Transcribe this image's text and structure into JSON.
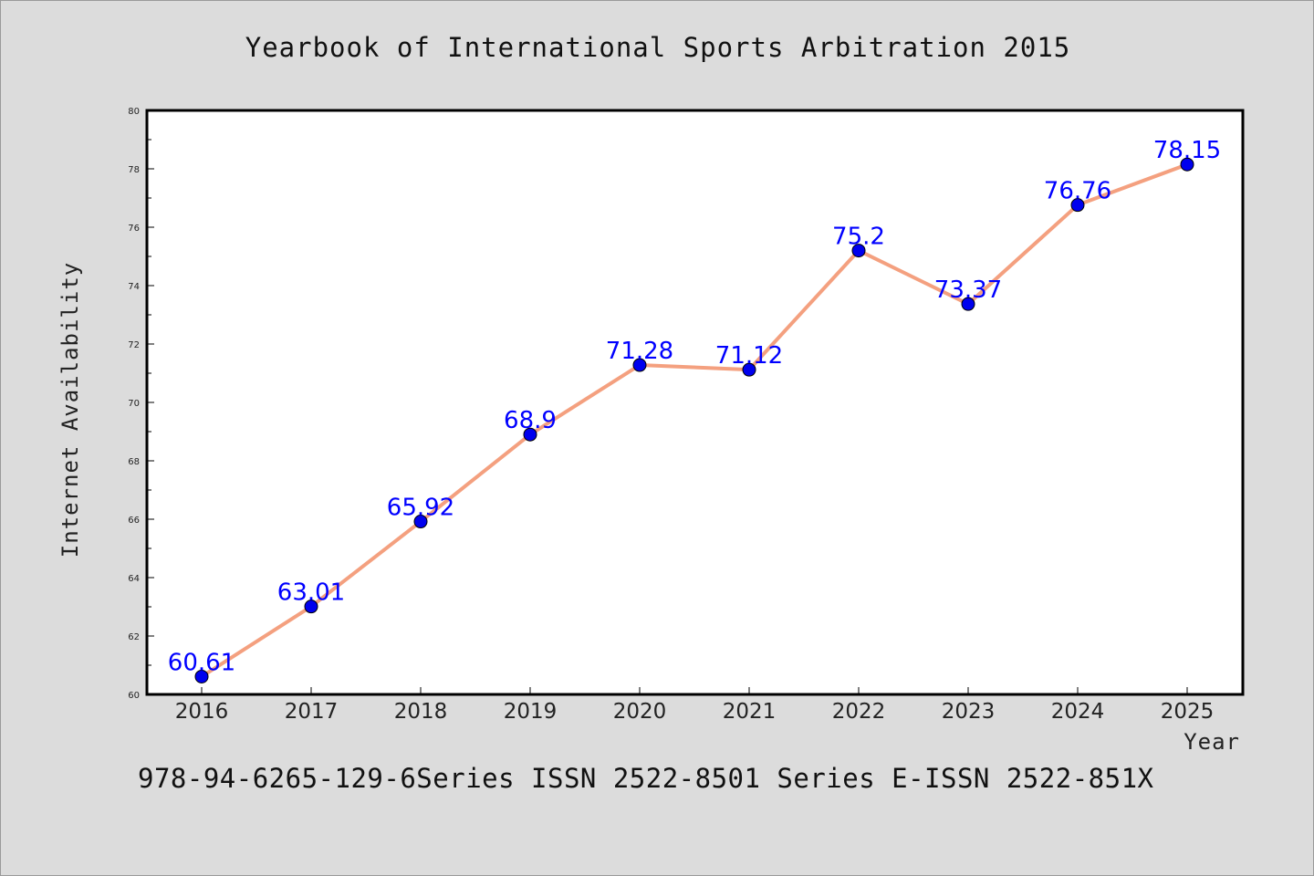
{
  "chart_data": {
    "type": "line",
    "title": "Yearbook of International Sports Arbitration 2015",
    "xlabel": "Year",
    "ylabel": "Internet Availability",
    "categories": [
      "2016",
      "2017",
      "2018",
      "2019",
      "2020",
      "2021",
      "2022",
      "2023",
      "2024",
      "2025"
    ],
    "values": [
      60.61,
      63.01,
      65.92,
      68.9,
      71.28,
      71.12,
      75.2,
      73.37,
      76.76,
      78.15
    ],
    "data_labels": [
      "60.61",
      "63.01",
      "65.92",
      "68.9",
      "71.28",
      "71.12",
      "75.2",
      "73.37",
      "76.76",
      "78.15"
    ],
    "ylim": [
      60,
      80
    ],
    "yticks": [
      "60",
      "62",
      "64",
      "66",
      "68",
      "70",
      "72",
      "74",
      "76",
      "78",
      "80"
    ],
    "grid": false,
    "line_color": "#f4a07f",
    "marker_color": "#0000ee",
    "label_color": "#0000ff",
    "background_color": "#dcdcdc",
    "plot_background": "#ffffff"
  },
  "footer": {
    "text": "978-94-6265-129-6Series ISSN 2522-8501 Series E-ISSN 2522-851X"
  }
}
